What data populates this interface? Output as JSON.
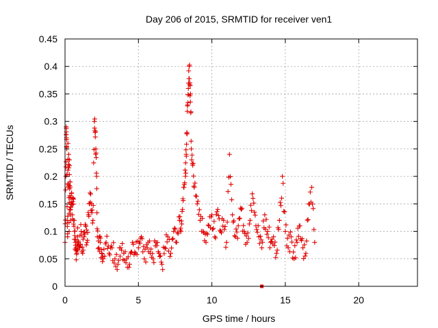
{
  "chart_data": {
    "type": "scatter",
    "title": "Day 206 of 2015, SRMTID for receiver ven1",
    "xlabel": "GPS time / hours",
    "ylabel": "SRMTID / TECUs",
    "xlim": [
      0,
      24
    ],
    "ylim": [
      0,
      0.45
    ],
    "xticks": [
      0,
      5,
      10,
      15,
      20
    ],
    "xtick_labels": [
      "0",
      "5",
      "10",
      "15",
      "20"
    ],
    "yticks": [
      0,
      0.05,
      0.1,
      0.15,
      0.2,
      0.25,
      0.3,
      0.35,
      0.4,
      0.45
    ],
    "ytick_labels": [
      "0",
      "0.05",
      "0.1",
      "0.15",
      "0.2",
      "0.25",
      "0.3",
      "0.35",
      "0.4",
      "0.45"
    ],
    "grid": true,
    "marker": "+",
    "color": "#e00000",
    "series": [
      {
        "name": "SRMTID",
        "x": [
          0.0,
          0.05,
          0.08,
          0.1,
          0.12,
          0.15,
          0.18,
          0.2,
          0.22,
          0.25,
          0.28,
          0.3,
          0.32,
          0.35,
          0.38,
          0.4,
          0.45,
          0.5,
          0.55,
          0.6,
          0.65,
          0.7,
          0.75,
          0.8,
          0.85,
          0.9,
          1.0,
          1.1,
          1.2,
          1.3,
          1.4,
          1.5,
          1.6,
          1.7,
          1.8,
          1.9,
          2.0,
          2.05,
          2.1,
          2.15,
          2.2,
          2.3,
          2.4,
          2.5,
          2.6,
          2.8,
          3.0,
          3.2,
          3.4,
          3.6,
          3.8,
          4.0,
          4.2,
          4.4,
          4.6,
          4.8,
          5.0,
          5.2,
          5.4,
          5.6,
          5.8,
          6.0,
          6.2,
          6.4,
          6.6,
          6.8,
          7.0,
          7.2,
          7.4,
          7.6,
          7.8,
          7.9,
          8.0,
          8.1,
          8.2,
          8.25,
          8.3,
          8.35,
          8.4,
          8.45,
          8.5,
          8.55,
          8.6,
          8.7,
          8.8,
          9.0,
          9.2,
          9.4,
          9.6,
          9.8,
          10.0,
          10.2,
          10.4,
          10.6,
          10.8,
          11.0,
          11.2,
          11.4,
          11.6,
          11.8,
          12.0,
          12.2,
          12.4,
          12.6,
          12.8,
          13.0,
          13.2,
          13.4,
          13.6,
          13.8,
          14.0,
          14.2,
          14.4,
          14.6,
          14.8,
          15.0,
          15.2,
          15.4,
          15.6,
          15.8,
          16.0,
          16.2,
          16.4,
          16.6,
          16.8,
          17.0
        ],
        "y": [
          0.08,
          0.2,
          0.29,
          0.27,
          0.25,
          0.12,
          0.09,
          0.26,
          0.18,
          0.24,
          0.1,
          0.23,
          0.14,
          0.19,
          0.12,
          0.15,
          0.17,
          0.13,
          0.16,
          0.12,
          0.1,
          0.08,
          0.07,
          0.06,
          0.09,
          0.08,
          0.07,
          0.1,
          0.06,
          0.09,
          0.11,
          0.08,
          0.13,
          0.17,
          0.15,
          0.12,
          0.3,
          0.28,
          0.25,
          0.2,
          0.09,
          0.07,
          0.08,
          0.06,
          0.05,
          0.08,
          0.06,
          0.07,
          0.05,
          0.04,
          0.07,
          0.06,
          0.05,
          0.04,
          0.08,
          0.06,
          0.07,
          0.09,
          0.05,
          0.07,
          0.06,
          0.05,
          0.08,
          0.06,
          0.04,
          0.07,
          0.09,
          0.06,
          0.1,
          0.08,
          0.12,
          0.1,
          0.14,
          0.18,
          0.2,
          0.24,
          0.28,
          0.33,
          0.36,
          0.4,
          0.37,
          0.35,
          0.25,
          0.22,
          0.18,
          0.15,
          0.12,
          0.1,
          0.08,
          0.11,
          0.13,
          0.09,
          0.14,
          0.1,
          0.12,
          0.08,
          0.24,
          0.13,
          0.09,
          0.11,
          0.14,
          0.1,
          0.08,
          0.12,
          0.16,
          0.11,
          0.09,
          0.07,
          0.13,
          0.1,
          0.08,
          0.09,
          0.06,
          0.12,
          0.2,
          0.1,
          0.07,
          0.09,
          0.05,
          0.08,
          0.11,
          0.07,
          0.06,
          0.15,
          0.18,
          0.08
        ],
        "extra_points": [
          [
            13.4,
            0.0
          ]
        ]
      }
    ]
  }
}
